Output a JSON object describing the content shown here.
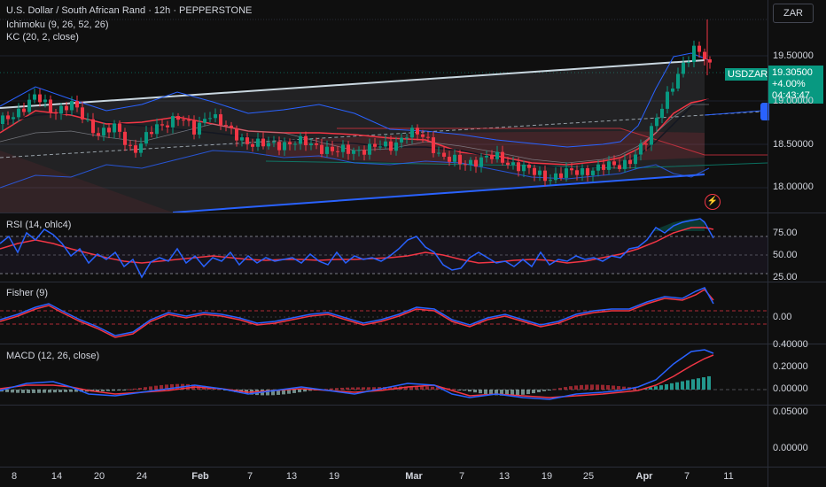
{
  "header": {
    "title": "U.S. Dollar / South African Rand · 12h · PEPPERSTONE",
    "indicators": [
      "Ichimoku (9, 26, 52, 26)",
      "KC (20, 2, close)"
    ]
  },
  "currency_button": "ZAR",
  "price_axis": [
    "19.50000",
    "19.00000",
    "18.50000",
    "18.00000"
  ],
  "current_price": {
    "symbol": "USDZAR",
    "price": "19.30500",
    "change": "+4.00%",
    "countdown": "04:43:47"
  },
  "panes": {
    "rsi": {
      "label": "RSI (14, ohlc4)",
      "ticks": [
        "75.00",
        "50.00",
        "25.00"
      ]
    },
    "fisher": {
      "label": "Fisher (9)",
      "ticks": [
        "0.00"
      ]
    },
    "macd": {
      "label": "MACD (12, 26, close)",
      "ticks": [
        "0.40000",
        "0.20000",
        "0.00000",
        "0.05000",
        "0.00000"
      ]
    }
  },
  "time_axis": [
    {
      "label": "8",
      "bold": false
    },
    {
      "label": "14",
      "bold": false
    },
    {
      "label": "20",
      "bold": false
    },
    {
      "label": "24",
      "bold": false
    },
    {
      "label": "Feb",
      "bold": true
    },
    {
      "label": "7",
      "bold": false
    },
    {
      "label": "13",
      "bold": false
    },
    {
      "label": "19",
      "bold": false
    },
    {
      "label": "Mar",
      "bold": true
    },
    {
      "label": "7",
      "bold": false
    },
    {
      "label": "13",
      "bold": false
    },
    {
      "label": "19",
      "bold": false
    },
    {
      "label": "25",
      "bold": false
    },
    {
      "label": "Apr",
      "bold": true
    },
    {
      "label": "7",
      "bold": false
    },
    {
      "label": "11",
      "bold": false
    }
  ],
  "colors": {
    "up": "#089981",
    "down": "#f23645",
    "blue": "#2962ff",
    "rsi_line": "#2962ff",
    "signal": "#f23645",
    "background": "#0f0f0f"
  },
  "icons": [
    "lightning-icon"
  ]
}
